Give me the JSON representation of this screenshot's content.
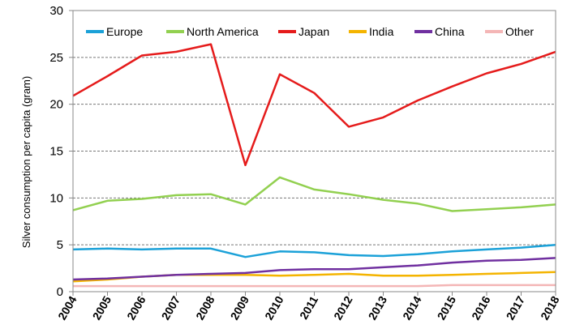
{
  "chart_data": {
    "type": "line",
    "title": "",
    "xlabel": "",
    "ylabel": "Silver consumption per capita (gram)",
    "ylim": [
      0,
      30
    ],
    "yticks": [
      0,
      5,
      10,
      15,
      20,
      25,
      30
    ],
    "grid": "horizontal dashed",
    "legend_position": "top",
    "x": [
      "2004",
      "2005",
      "2006",
      "2007",
      "2008",
      "2009",
      "2010",
      "2011",
      "2012",
      "2013",
      "2014",
      "2015",
      "2016",
      "2017",
      "2018"
    ],
    "series": [
      {
        "name": "Europe",
        "color": "#1ba1d8",
        "values": [
          4.5,
          4.6,
          4.5,
          4.6,
          4.6,
          3.7,
          4.3,
          4.2,
          3.9,
          3.8,
          4.0,
          4.3,
          4.5,
          4.7,
          5.0
        ]
      },
      {
        "name": "North America",
        "color": "#92d050",
        "values": [
          8.7,
          9.7,
          9.9,
          10.3,
          10.4,
          9.3,
          12.2,
          10.9,
          10.4,
          9.8,
          9.4,
          8.6,
          8.8,
          9.0,
          9.3
        ]
      },
      {
        "name": "Japan",
        "color": "#e51b1b",
        "values": [
          20.9,
          23.0,
          25.2,
          25.6,
          26.4,
          13.5,
          23.2,
          21.2,
          17.6,
          18.6,
          20.4,
          21.9,
          23.3,
          24.3,
          25.6
        ]
      },
      {
        "name": "India",
        "color": "#f4b400",
        "values": [
          1.1,
          1.3,
          1.6,
          1.8,
          1.8,
          1.8,
          1.7,
          1.8,
          1.9,
          1.7,
          1.7,
          1.8,
          1.9,
          2.0,
          2.1
        ]
      },
      {
        "name": "China",
        "color": "#7030a0",
        "values": [
          1.3,
          1.4,
          1.6,
          1.8,
          1.9,
          2.0,
          2.3,
          2.4,
          2.4,
          2.6,
          2.8,
          3.1,
          3.3,
          3.4,
          3.6
        ]
      },
      {
        "name": "Other",
        "color": "#f4b6b6",
        "values": [
          0.6,
          0.6,
          0.6,
          0.6,
          0.6,
          0.6,
          0.6,
          0.6,
          0.6,
          0.6,
          0.6,
          0.7,
          0.7,
          0.7,
          0.7
        ]
      }
    ]
  }
}
